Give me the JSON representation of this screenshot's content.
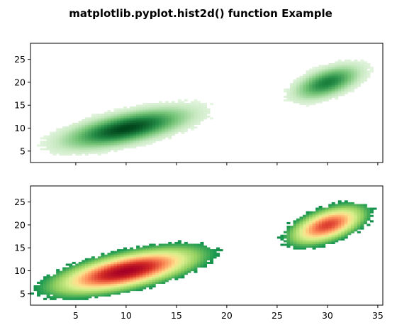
{
  "chart_data": [
    {
      "type": "heatmap",
      "title": "matplotlib.pyplot.hist2d() function Example",
      "colormap": "Greens",
      "xlim": [
        0.5,
        35.5
      ],
      "ylim": [
        2.5,
        28.5
      ],
      "yticks": [
        5,
        10,
        15,
        20,
        25
      ],
      "xticks": [
        5,
        10,
        15,
        20,
        25,
        30,
        35
      ],
      "xtick_labels_shown": false,
      "clusters": [
        {
          "center": [
            10,
            10
          ],
          "density_peak": 1.0,
          "description": "tilted elliptical cluster"
        },
        {
          "center": [
            30,
            20
          ],
          "density_peak": 0.75,
          "description": "tilted elliptical cluster"
        }
      ]
    },
    {
      "type": "heatmap",
      "colormap": "RdYlGn_r",
      "xlim": [
        0.5,
        35.5
      ],
      "ylim": [
        2.5,
        28.5
      ],
      "yticks": [
        5,
        10,
        15,
        20,
        25
      ],
      "xticks": [
        5,
        10,
        15,
        20,
        25,
        30,
        35
      ],
      "clusters": [
        {
          "center": [
            10,
            10
          ],
          "density_peak": 1.0
        },
        {
          "center": [
            30,
            20
          ],
          "density_peak": 0.75
        }
      ]
    }
  ],
  "title": "matplotlib.pyplot.hist2d() function Example"
}
